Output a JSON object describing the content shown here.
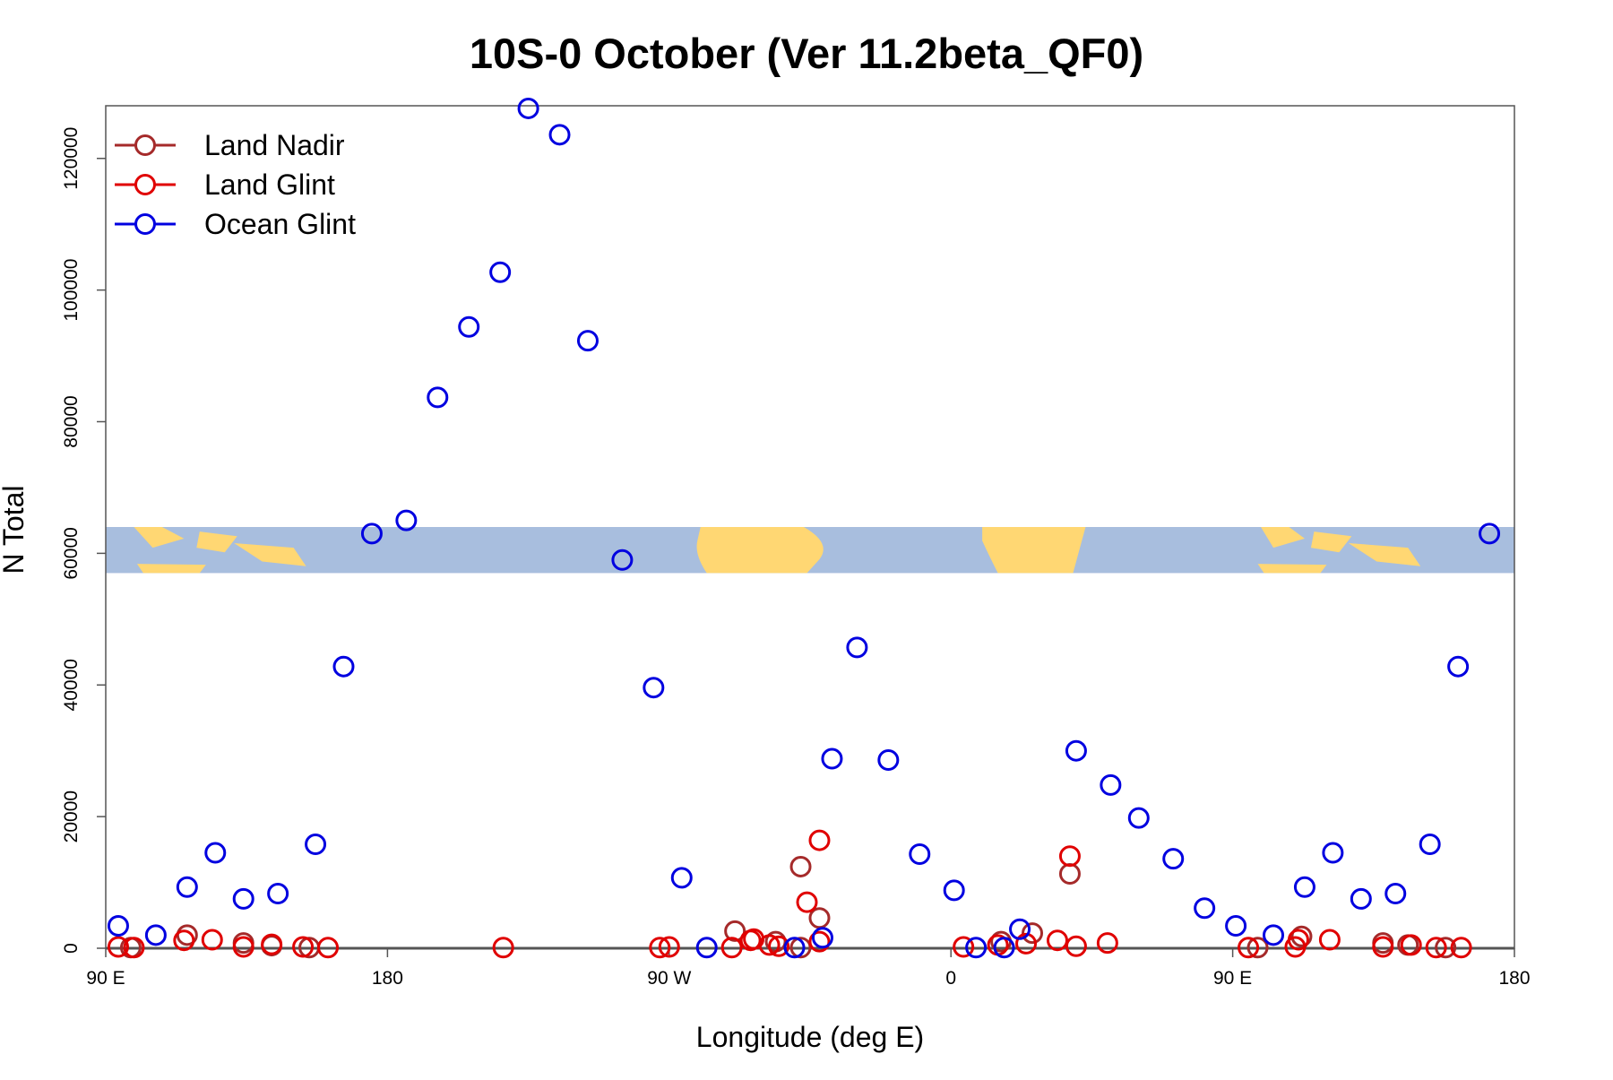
{
  "chart_data": {
    "type": "scatter",
    "title": "10S-0 October (Ver 11.2beta_QF0)",
    "xlabel": "Longitude (deg E)",
    "ylabel": "N Total",
    "xlim": [
      90,
      540
    ],
    "ylim": [
      0,
      128000
    ],
    "x_ticks": [
      {
        "value": 90,
        "label": "90 E"
      },
      {
        "value": 180,
        "label": "180"
      },
      {
        "value": 270,
        "label": "90 W"
      },
      {
        "value": 360,
        "label": "0"
      },
      {
        "value": 450,
        "label": "90 E"
      },
      {
        "value": 540,
        "label": "180"
      }
    ],
    "y_ticks": [
      {
        "value": 0,
        "label": "0"
      },
      {
        "value": 20000,
        "label": "20000"
      },
      {
        "value": 40000,
        "label": "40000"
      },
      {
        "value": 60000,
        "label": "60000"
      },
      {
        "value": 80000,
        "label": "80000"
      },
      {
        "value": 100000,
        "label": "100000"
      },
      {
        "value": 120000,
        "label": "120000"
      }
    ],
    "legend_position": "top-left",
    "inset_map": {
      "description_visible": false,
      "y_range": [
        57000,
        64000
      ],
      "ocean_color": "#a8bede",
      "land_color": "#ffd773"
    },
    "series": [
      {
        "name": "Land Nadir",
        "color": "#a52a2a",
        "points": [
          [
            98,
            100
          ],
          [
            116,
            2000
          ],
          [
            134,
            800
          ],
          [
            143,
            400
          ],
          [
            155,
            100
          ],
          [
            291,
            2600
          ],
          [
            304,
            1000
          ],
          [
            312,
            100
          ],
          [
            312,
            12400
          ],
          [
            318,
            4600
          ],
          [
            376,
            1000
          ],
          [
            386,
            2300
          ],
          [
            398,
            11300
          ],
          [
            458,
            100
          ],
          [
            472,
            1800
          ],
          [
            498,
            800
          ],
          [
            506,
            500
          ],
          [
            518,
            100
          ]
        ]
      },
      {
        "name": "Land Glint",
        "color": "#e00000",
        "points": [
          [
            94,
            200
          ],
          [
            99,
            100
          ],
          [
            115,
            1200
          ],
          [
            124,
            1300
          ],
          [
            134,
            200
          ],
          [
            143,
            600
          ],
          [
            153,
            200
          ],
          [
            161,
            100
          ],
          [
            217,
            100
          ],
          [
            267,
            100
          ],
          [
            270,
            200
          ],
          [
            290,
            100
          ],
          [
            296,
            1200
          ],
          [
            297,
            1400
          ],
          [
            305,
            300
          ],
          [
            318,
            1000
          ],
          [
            302,
            500
          ],
          [
            314,
            7000
          ],
          [
            318,
            16400
          ],
          [
            364,
            200
          ],
          [
            375,
            500
          ],
          [
            384,
            700
          ],
          [
            394,
            1200
          ],
          [
            400,
            300
          ],
          [
            398,
            14000
          ],
          [
            410,
            800
          ],
          [
            455,
            100
          ],
          [
            470,
            200
          ],
          [
            471,
            1300
          ],
          [
            481,
            1300
          ],
          [
            498,
            200
          ],
          [
            507,
            500
          ],
          [
            515,
            100
          ],
          [
            523,
            100
          ]
        ]
      },
      {
        "name": "Ocean Glint",
        "color": "#0000e0",
        "points": [
          [
            94,
            3400
          ],
          [
            106,
            2000
          ],
          [
            116,
            9300
          ],
          [
            125,
            14500
          ],
          [
            134,
            7500
          ],
          [
            145,
            8300
          ],
          [
            157,
            15800
          ],
          [
            166,
            42800
          ],
          [
            175,
            63000
          ],
          [
            186,
            65000
          ],
          [
            196,
            83700
          ],
          [
            206,
            94400
          ],
          [
            216,
            102700
          ],
          [
            225,
            127600
          ],
          [
            235,
            123600
          ],
          [
            244,
            92300
          ],
          [
            255,
            59000
          ],
          [
            265,
            39600
          ],
          [
            274,
            10700
          ],
          [
            282,
            100
          ],
          [
            310,
            100
          ],
          [
            319,
            1600
          ],
          [
            322,
            28800
          ],
          [
            330,
            45700
          ],
          [
            340,
            28600
          ],
          [
            350,
            14300
          ],
          [
            361,
            8800
          ],
          [
            368,
            100
          ],
          [
            377,
            100
          ],
          [
            382,
            2900
          ],
          [
            400,
            30000
          ],
          [
            411,
            24800
          ],
          [
            420,
            19800
          ],
          [
            431,
            13600
          ],
          [
            441,
            6100
          ],
          [
            451,
            3400
          ],
          [
            463,
            2000
          ],
          [
            473,
            9300
          ],
          [
            482,
            14500
          ],
          [
            491,
            7500
          ],
          [
            502,
            8300
          ],
          [
            513,
            15800
          ],
          [
            522,
            42800
          ],
          [
            532,
            63000
          ]
        ]
      }
    ]
  }
}
